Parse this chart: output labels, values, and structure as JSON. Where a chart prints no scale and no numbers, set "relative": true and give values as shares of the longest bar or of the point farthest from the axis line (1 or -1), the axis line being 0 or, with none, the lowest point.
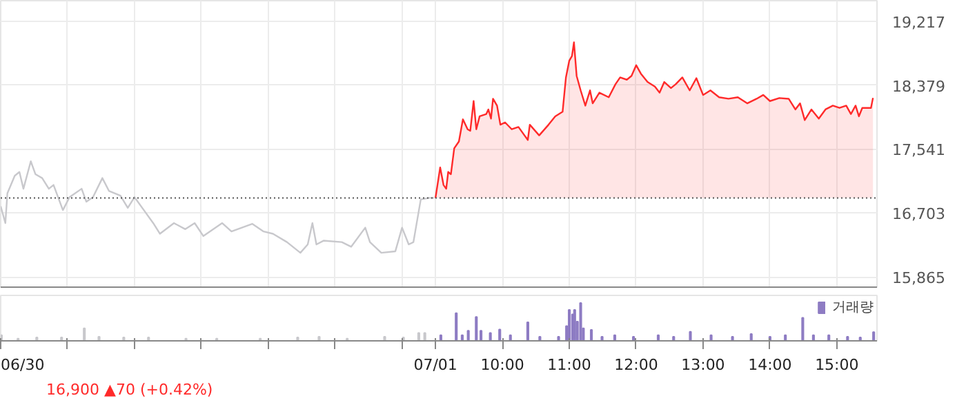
{
  "chart_data": [
    {
      "type": "line",
      "xlim": [
        2.5,
        15.6
      ],
      "ylim": [
        15730,
        19486
      ],
      "xticks": [
        2.5,
        3.5,
        4.5,
        5.5,
        6.5,
        7.5,
        8.5,
        9,
        10,
        11,
        12,
        13,
        14,
        15
      ],
      "yticks": [
        {
          "value": 15865,
          "label": "15,865"
        },
        {
          "value": 16703,
          "label": "16,703"
        },
        {
          "value": 17541,
          "label": "17,541"
        },
        {
          "value": 18379,
          "label": "18,379"
        },
        {
          "value": 19217,
          "label": "19,217"
        }
      ],
      "grid": true,
      "tick_labels": "y",
      "ref_lines": [
        {
          "axis": "y",
          "value": 16900,
          "line_style": "dotted"
        }
      ],
      "series": [
        {
          "type": "line",
          "color": "#c8c8cc",
          "x": [
            2.5,
            2.57,
            2.6,
            2.71,
            2.78,
            2.84,
            2.95,
            3.02,
            3.12,
            3.22,
            3.29,
            3.43,
            3.53,
            3.71,
            3.78,
            3.88,
            4.02,
            4.12,
            4.29,
            4.4,
            4.5,
            4.64,
            4.78,
            4.88,
            5.09,
            5.26,
            5.4,
            5.53,
            5.81,
            5.95,
            6.26,
            6.43,
            6.57,
            6.78,
            6.98,
            7.09,
            7.16,
            7.22,
            7.33,
            7.6,
            7.74,
            7.95,
            8.02,
            8.19,
            8.4,
            8.5,
            8.6,
            8.67,
            8.78,
            8.91,
            8.98
          ],
          "values": [
            16790,
            16570,
            16960,
            17190,
            17240,
            17020,
            17380,
            17210,
            17160,
            17020,
            17070,
            16740,
            16910,
            17020,
            16850,
            16910,
            17160,
            16990,
            16930,
            16770,
            16910,
            16740,
            16570,
            16430,
            16570,
            16490,
            16570,
            16400,
            16570,
            16460,
            16560,
            16460,
            16430,
            16320,
            16180,
            16290,
            16570,
            16290,
            16340,
            16320,
            16260,
            16510,
            16320,
            16180,
            16200,
            16510,
            16290,
            16320,
            16880,
            16900,
            16900
          ]
        },
        {
          "type": "area",
          "color": "#ff2a2a",
          "x": [
            9,
            9.07,
            9.12,
            9.16,
            9.19,
            9.23,
            9.28,
            9.35,
            9.41,
            9.48,
            9.52,
            9.57,
            9.61,
            9.66,
            9.76,
            9.79,
            9.83,
            9.86,
            9.92,
            9.97,
            10.04,
            10.14,
            10.24,
            10.38,
            10.41,
            10.55,
            10.69,
            10.79,
            10.9,
            10.95,
            11,
            11.04,
            11.07,
            11.11,
            11.17,
            11.24,
            11.31,
            11.35,
            11.45,
            11.59,
            11.69,
            11.76,
            11.86,
            11.93,
            12,
            12.07,
            12.17,
            12.28,
            12.35,
            12.42,
            12.52,
            12.59,
            12.69,
            12.8,
            12.9,
            13,
            13.11,
            13.24,
            13.38,
            13.52,
            13.66,
            13.8,
            13.9,
            14,
            14.14,
            14.28,
            14.38,
            14.45,
            14.52,
            14.62,
            14.73,
            14.83,
            14.94,
            15.04,
            15.14,
            15.21,
            15.28,
            15.33,
            15.38,
            15.51,
            15.54
          ],
          "values": [
            16900,
            17300,
            17070,
            17020,
            17240,
            17210,
            17550,
            17640,
            17930,
            17800,
            17780,
            18170,
            17800,
            17970,
            18000,
            18060,
            17940,
            18200,
            18110,
            17860,
            17890,
            17800,
            17830,
            17660,
            17860,
            17720,
            17860,
            17970,
            18030,
            18480,
            18700,
            18760,
            18940,
            18500,
            18310,
            18110,
            18310,
            18140,
            18280,
            18220,
            18390,
            18480,
            18450,
            18500,
            18640,
            18530,
            18420,
            18360,
            18280,
            18420,
            18340,
            18390,
            18480,
            18310,
            18470,
            18250,
            18310,
            18220,
            18200,
            18220,
            18140,
            18200,
            18250,
            18170,
            18210,
            18200,
            18060,
            18140,
            17920,
            18060,
            17940,
            18060,
            18110,
            18080,
            18110,
            18000,
            18110,
            17970,
            18080,
            18080,
            18210
          ]
        }
      ]
    },
    {
      "type": "bar",
      "relative": true,
      "xlim": [
        2.5,
        15.6
      ],
      "xticks": [
        {
          "value": 2.5,
          "label": "06/30"
        },
        {
          "value": 3.5,
          "label": null
        },
        {
          "value": 4.5,
          "label": null
        },
        {
          "value": 5.5,
          "label": null
        },
        {
          "value": 6.5,
          "label": null
        },
        {
          "value": 7.5,
          "label": null
        },
        {
          "value": 8.5,
          "label": null
        },
        {
          "value": 9,
          "label": "07/01"
        },
        {
          "value": 10,
          "label": "10:00"
        },
        {
          "value": 11,
          "label": "11:00"
        },
        {
          "value": 12,
          "label": "12:00"
        },
        {
          "value": 13,
          "label": "13:00"
        },
        {
          "value": 14,
          "label": "14:00"
        },
        {
          "value": 15,
          "label": "15:00"
        }
      ],
      "tick_labels": "x",
      "legend": "top right",
      "annotations": [
        "16,900 ▲70 (+0.42%)"
      ],
      "series": [
        {
          "color": "#c8c8cc",
          "x": [
            2.51,
            2.76,
            3.04,
            3.41,
            3.75,
            3.97,
            4.34,
            4.71,
            5.27,
            5.73,
            6.38,
            6.94,
            7.26,
            7.68,
            8.24,
            8.52,
            8.75,
            8.84
          ],
          "values": [
            0.15,
            0.06,
            0.09,
            0.09,
            0.33,
            0.11,
            0.09,
            0.09,
            0.06,
            0.06,
            0.06,
            0.09,
            0.11,
            0.06,
            0.11,
            0.09,
            0.21,
            0.21
          ]
        },
        {
          "name": "거래량",
          "color": "#8e7cc3",
          "x": [
            9.08,
            9.31,
            9.4,
            9.49,
            9.61,
            9.68,
            9.82,
            9.96,
            10.12,
            10.38,
            10.56,
            10.84,
            10.96,
            11,
            11.05,
            11.08,
            11.12,
            11.17,
            11.21,
            11.33,
            11.49,
            11.68,
            11.96,
            12.33,
            12.56,
            12.81,
            13.12,
            13.44,
            13.72,
            14,
            14.23,
            14.49,
            14.65,
            14.88,
            15.16,
            15.35,
            15.55
          ],
          "values": [
            0.15,
            0.73,
            0.15,
            0.27,
            0.63,
            0.27,
            0.21,
            0.3,
            0.15,
            0.49,
            0.11,
            0.11,
            0.39,
            0.82,
            0.7,
            0.82,
            0.51,
            1.0,
            0.33,
            0.29,
            0.11,
            0.15,
            0.11,
            0.15,
            0.11,
            0.24,
            0.15,
            0.11,
            0.18,
            0.11,
            0.15,
            0.61,
            0.15,
            0.15,
            0.11,
            0.09,
            0.23
          ]
        }
      ]
    }
  ]
}
